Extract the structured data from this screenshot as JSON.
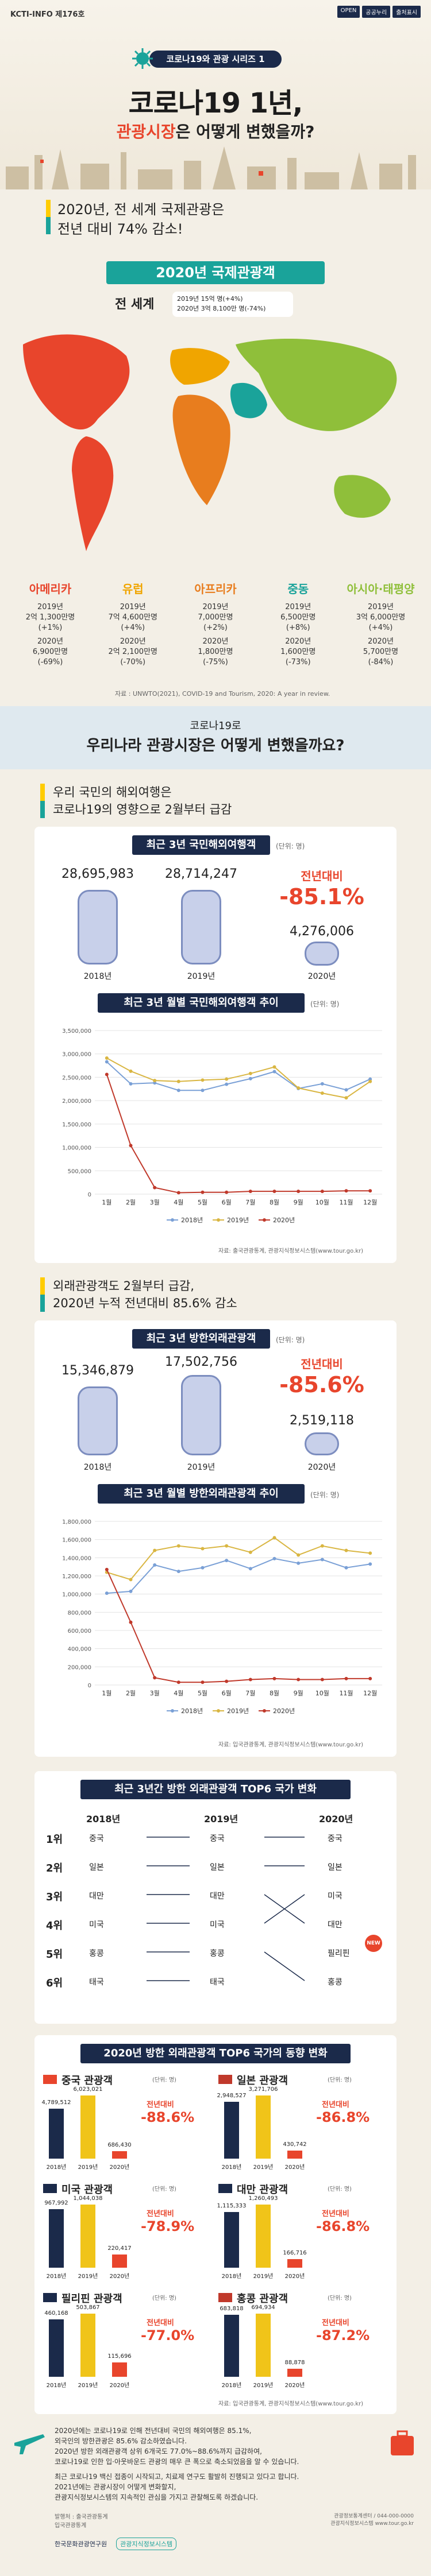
{
  "header": {
    "series_code": "KCTI-INFO 제176호",
    "badges": [
      "OPEN",
      "공공누리",
      "출처표시"
    ],
    "series": "코로나19와 관광 시리즈 1"
  },
  "hero": {
    "title": "코로나19 1년,",
    "subtitle_a": "관광시장",
    "subtitle_b": "은 어떻게 변했을까?"
  },
  "intro": {
    "line1": "2020년, 전 세계 국제관광은",
    "line2": "전년 대비 74% 감소!"
  },
  "world": {
    "title": "2020년 국제관광객",
    "label": "전 세계",
    "stat1": "2019년 15억 명(+4%)",
    "stat2": "2020년 3억 8,100만 명(-74%)",
    "regions": [
      {
        "name": "아메리카",
        "color": "#e8452c",
        "a": "2019년",
        "b": "2억 1,300만명",
        "c": "(+1%)",
        "d": "2020년",
        "e": "6,900만명",
        "f": "(-69%)"
      },
      {
        "name": "유럽",
        "color": "#f0a500",
        "a": "2019년",
        "b": "7억 4,600만명",
        "c": "(+4%)",
        "d": "2020년",
        "e": "2억 2,100만명",
        "f": "(-70%)"
      },
      {
        "name": "아프리카",
        "color": "#e87d1e",
        "a": "2019년",
        "b": "7,000만명",
        "c": "(+2%)",
        "d": "2020년",
        "e": "1,800만명",
        "f": "(-75%)"
      },
      {
        "name": "중동",
        "color": "#1aa39a",
        "a": "2019년",
        "b": "6,500만명",
        "c": "(+8%)",
        "d": "2020년",
        "e": "1,600만명",
        "f": "(-73%)"
      },
      {
        "name": "아시아·태평양",
        "color": "#8fbf3a",
        "a": "2019년",
        "b": "3억 6,000만명",
        "c": "(+4%)",
        "d": "2020년",
        "e": "5,700만명",
        "f": "(-84%)"
      }
    ],
    "source": "자료 : UNWTO(2021), COVID-19 and Tourism, 2020: A year in review."
  },
  "korea": {
    "q1": "코로나19로",
    "q2": "우리나라 관광시장은 어떻게 변했을까요?"
  },
  "outbound": {
    "line1": "우리 국민의 해외여행은",
    "line2": "코로나19의 영향으로 2월부터 급감",
    "title": "최근 3년 국민해외여행객",
    "unit": "(단위: 명)",
    "values": [
      "28,695,983",
      "28,714,247",
      "4,276,006"
    ],
    "years": [
      "2018년",
      "2019년",
      "2020년"
    ],
    "pct_label": "전년대비",
    "pct": "-85.1%",
    "monthly_title": "최근 3년 월별 국민해외여행객 추이",
    "source": "자료: 출국관광통계, 관광지식정보시스템(www.tour.go.kr)"
  },
  "inbound": {
    "line1": "외래관광객도 2월부터 급감,",
    "line2": "2020년 누적 전년대비 85.6% 감소",
    "title": "최근 3년 방한외래관광객",
    "unit": "(단위: 명)",
    "values": [
      "15,346,879",
      "17,502,756",
      "2,519,118"
    ],
    "years": [
      "2018년",
      "2019년",
      "2020년"
    ],
    "pct_label": "전년대비",
    "pct": "-85.6%",
    "monthly_title": "최근 3년 월별 방한외래관광객 추이",
    "source": "자료: 입국관광통계, 관광지식정보시스템(www.tour.go.kr)"
  },
  "chart_data": [
    {
      "type": "line",
      "title": "최근 3년 월별 국민해외여행객 추이",
      "categories": [
        "1월",
        "2월",
        "3월",
        "4월",
        "5월",
        "6월",
        "7월",
        "8월",
        "9월",
        "10월",
        "11월",
        "12월"
      ],
      "ylim": [
        0,
        3500000
      ],
      "yticks": [
        "3,500,000",
        "3,000,000",
        "2,500,000",
        "2,000,000",
        "1,500,000",
        "1,000,000",
        "500,000",
        "0"
      ],
      "series": [
        {
          "name": "2018년",
          "color": "#7aa0d6",
          "values": [
            2830000,
            2360000,
            2380000,
            2220000,
            2220000,
            2350000,
            2470000,
            2620000,
            2260000,
            2360000,
            2230000,
            2460000
          ]
        },
        {
          "name": "2019년",
          "color": "#d9b642",
          "values": [
            2910000,
            2630000,
            2430000,
            2410000,
            2440000,
            2460000,
            2580000,
            2720000,
            2270000,
            2160000,
            2060000,
            2410000
          ]
        },
        {
          "name": "2020년",
          "color": "#c0392b",
          "values": [
            2560000,
            1040000,
            140000,
            30000,
            40000,
            40000,
            60000,
            60000,
            60000,
            60000,
            70000,
            70000
          ]
        }
      ],
      "legend": [
        "2018년",
        "2019년",
        "2020년"
      ]
    },
    {
      "type": "line",
      "title": "최근 3년 월별 방한외래관광객 추이",
      "categories": [
        "1월",
        "2월",
        "3월",
        "4월",
        "5월",
        "6월",
        "7월",
        "8월",
        "9월",
        "10월",
        "11월",
        "12월"
      ],
      "ylim": [
        0,
        1800000
      ],
      "yticks": [
        "1,800,000",
        "1,600,000",
        "1,400,000",
        "1,200,000",
        "1,000,000",
        "800,000",
        "600,000",
        "400,000",
        "200,000",
        "0"
      ],
      "series": [
        {
          "name": "2018년",
          "color": "#7aa0d6",
          "values": [
            1010000,
            1030000,
            1320000,
            1250000,
            1290000,
            1370000,
            1280000,
            1390000,
            1340000,
            1380000,
            1290000,
            1330000
          ]
        },
        {
          "name": "2019년",
          "color": "#d9b642",
          "values": [
            1240000,
            1160000,
            1480000,
            1530000,
            1500000,
            1530000,
            1460000,
            1620000,
            1430000,
            1530000,
            1480000,
            1450000
          ]
        },
        {
          "name": "2020년",
          "color": "#c0392b",
          "values": [
            1270000,
            690000,
            80000,
            30000,
            30000,
            40000,
            60000,
            70000,
            60000,
            60000,
            70000,
            70000
          ]
        }
      ],
      "legend": [
        "2018년",
        "2019년",
        "2020년"
      ]
    }
  ],
  "top6": {
    "title": "최근 3년간 방한 외래관광객 TOP6 국가 변화",
    "years": [
      "2018년",
      "2019년",
      "2020년"
    ],
    "ranks": [
      "1위",
      "2위",
      "3위",
      "4위",
      "5위",
      "6위"
    ],
    "y2018": [
      "중국",
      "일본",
      "대만",
      "미국",
      "홍콩",
      "태국"
    ],
    "y2019": [
      "중국",
      "일본",
      "대만",
      "미국",
      "홍콩",
      "태국"
    ],
    "y2020": [
      "중국",
      "일본",
      "미국",
      "대만",
      "필리핀",
      "홍콩"
    ],
    "new_badge": "NEW"
  },
  "trend": {
    "title": "2020년 방한 외래관광객 TOP6 국가의 동향 변화",
    "unit": "(단위: 명)",
    "pct_label": "전년대비",
    "countries": [
      {
        "name": "중국 관광객",
        "v": [
          "4,789,512",
          "6,023,021",
          "686,430"
        ],
        "pct": "-88.6%"
      },
      {
        "name": "일본 관광객",
        "v": [
          "2,948,527",
          "3,271,706",
          "430,742"
        ],
        "pct": "-86.8%"
      },
      {
        "name": "미국 관광객",
        "v": [
          "967,992",
          "1,044,038",
          "220,417"
        ],
        "pct": "-78.9%"
      },
      {
        "name": "대만 관광객",
        "v": [
          "1,115,333",
          "1,260,493",
          "166,716"
        ],
        "pct": "-86.8%"
      },
      {
        "name": "필리핀 관광객",
        "v": [
          "460,168",
          "503,867",
          "115,696"
        ],
        "pct": "-77.0%"
      },
      {
        "name": "홍콩 관광객",
        "v": [
          "683,818",
          "694,934",
          "88,878"
        ],
        "pct": "-87.2%"
      }
    ],
    "years": [
      "2018년",
      "2019년",
      "2020년"
    ],
    "source": "자료: 입국관광통계, 관광지식정보시스템(www.tour.go.kr)"
  },
  "summary": {
    "p1": "2020년에는 코로나19로 인해 전년대비 국민의 해외여행은 85.1%,",
    "p2": "외국인의 방한관광은 85.6% 감소하였습니다.",
    "p3": "2020년 방한 외래관광객 상위 6개국도 77.0%~88.6%까지 급감하여,",
    "p4": "코로나19로 인한 입·아웃바운드 관광의 매우 큰 폭으로 축소되었음을 알 수 있습니다.",
    "p5": "최근 코로나19 백신 접종이 시작되고, 치료제 연구도 활발히 진행되고 있다고 합니다.",
    "p6": "2021년에는 관광시장이 어떻게 변화할지,",
    "p7": "관광지식정보시스템의 지속적인 관심을 가지고 관찰해도록 하겠습니다.",
    "p8": "",
    "credit1": "발행처 : 출국관광통계",
    "credit2": "입국관광통계",
    "org_a": "한국문화관광연구원",
    "org_b": "관광지식정보시스템",
    "contact1": "관광정보통계센터 / 044-000-0000",
    "contact2": "관광지식정보시스템 www.tour.go.kr"
  }
}
